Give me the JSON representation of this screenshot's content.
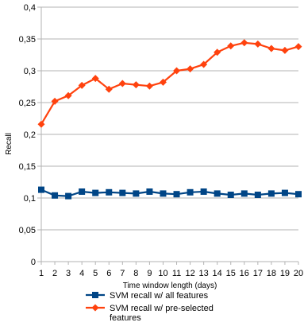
{
  "chart_data": {
    "type": "line",
    "title": "",
    "xlabel": "Time window length (days)",
    "ylabel": "Recall",
    "x": [
      1,
      2,
      3,
      4,
      5,
      6,
      7,
      8,
      9,
      10,
      11,
      12,
      13,
      14,
      15,
      16,
      17,
      18,
      19,
      20
    ],
    "ylim": [
      0,
      0.4
    ],
    "yticks": [
      {
        "value": 0,
        "label": "0"
      },
      {
        "value": 0.05,
        "label": "0,05"
      },
      {
        "value": 0.1,
        "label": "0,1"
      },
      {
        "value": 0.15,
        "label": "0,15"
      },
      {
        "value": 0.2,
        "label": "0,2"
      },
      {
        "value": 0.25,
        "label": "0,25"
      },
      {
        "value": 0.3,
        "label": "0,3"
      },
      {
        "value": 0.35,
        "label": "0,35"
      },
      {
        "value": 0.4,
        "label": "0,4"
      }
    ],
    "grid": true,
    "legend_position": "bottom",
    "series": [
      {
        "name": "SVM recall w/ all features",
        "legend_lines": [
          "SVM recall w/ all features"
        ],
        "color": "#004586",
        "marker": "square",
        "values": [
          0.113,
          0.104,
          0.103,
          0.11,
          0.108,
          0.109,
          0.108,
          0.107,
          0.11,
          0.107,
          0.106,
          0.109,
          0.11,
          0.107,
          0.105,
          0.107,
          0.105,
          0.107,
          0.108,
          0.106
        ]
      },
      {
        "name": "SVM recall w/ pre-selected features",
        "legend_lines": [
          "SVM recall w/ pre-selected",
          "features"
        ],
        "color": "#ff420e",
        "marker": "diamond",
        "values": [
          0.216,
          0.252,
          0.261,
          0.277,
          0.288,
          0.271,
          0.28,
          0.278,
          0.276,
          0.282,
          0.3,
          0.303,
          0.31,
          0.329,
          0.339,
          0.344,
          0.342,
          0.335,
          0.332,
          0.338
        ]
      }
    ]
  }
}
